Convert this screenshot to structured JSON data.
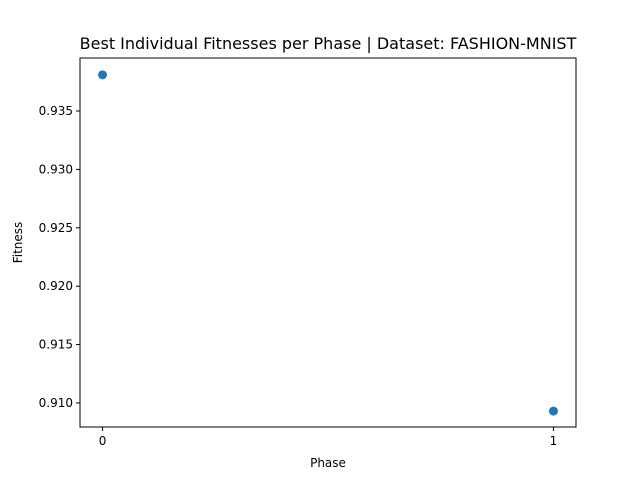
{
  "chart_data": {
    "type": "scatter",
    "title": "Best Individual Fitnesses per Phase | Dataset: FASHION-MNIST",
    "xlabel": "Phase",
    "ylabel": "Fitness",
    "x": [
      0,
      1
    ],
    "y": [
      0.9381,
      0.9093
    ],
    "xticks": [
      0,
      1
    ],
    "xtick_labels": [
      "0",
      "1"
    ],
    "yticks": [
      0.91,
      0.915,
      0.92,
      0.925,
      0.93,
      0.935
    ],
    "ytick_labels": [
      "0.910",
      "0.915",
      "0.920",
      "0.925",
      "0.930",
      "0.935"
    ],
    "xlim": [
      -0.05,
      1.05
    ],
    "ylim": [
      0.90794,
      0.93954
    ],
    "grid": false,
    "marker_color": "#1f77b4"
  }
}
